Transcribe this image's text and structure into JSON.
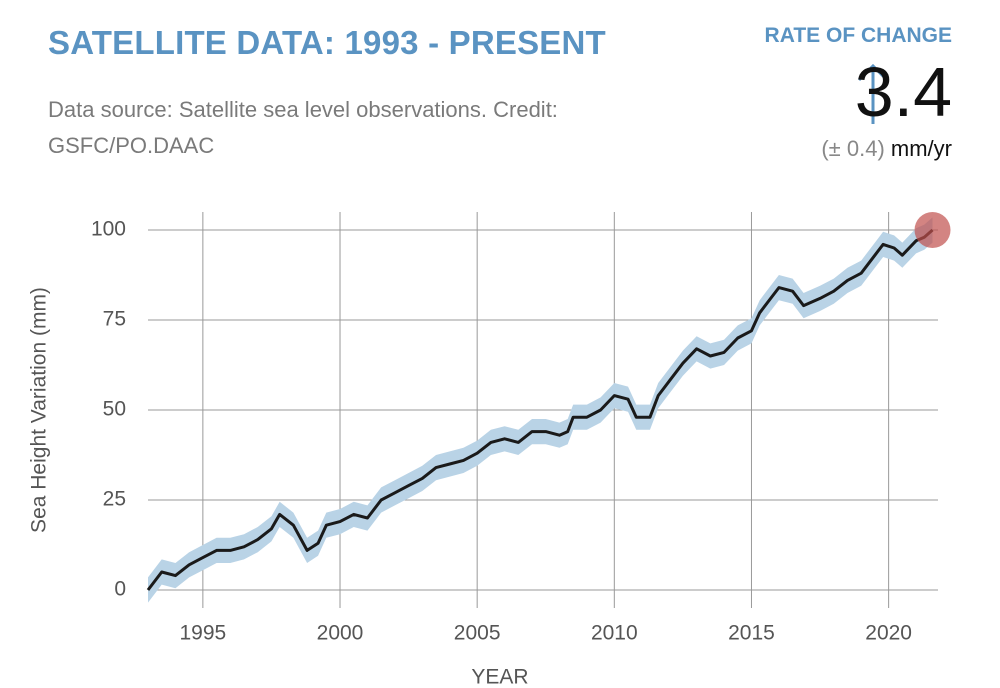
{
  "chart_data": {
    "type": "line",
    "title": "SATELLITE DATA: 1993 - PRESENT",
    "subtitle": "Data source: Satellite sea level observations. Credit: GSFC/PO.DAAC",
    "rate": {
      "label": "RATE OF CHANGE",
      "value": 3.4,
      "uncertainty": "(± 0.4)",
      "unit": "mm/yr"
    },
    "xlabel": "YEAR",
    "ylabel": "Sea Height Variation (mm)",
    "x": [
      1993.0,
      1993.5,
      1994.0,
      1994.5,
      1995.0,
      1995.5,
      1996.0,
      1996.5,
      1997.0,
      1997.5,
      1997.8,
      1998.3,
      1998.8,
      1999.2,
      1999.5,
      2000.0,
      2000.5,
      2001.0,
      2001.5,
      2002.0,
      2002.5,
      2003.0,
      2003.5,
      2004.0,
      2004.5,
      2005.0,
      2005.5,
      2006.0,
      2006.5,
      2007.0,
      2007.5,
      2008.0,
      2008.3,
      2008.5,
      2009.0,
      2009.5,
      2010.0,
      2010.5,
      2010.8,
      2011.3,
      2011.6,
      2012.0,
      2012.5,
      2013.0,
      2013.5,
      2014.0,
      2014.5,
      2015.0,
      2015.3,
      2015.7,
      2016.0,
      2016.5,
      2016.9,
      2017.5,
      2018.0,
      2018.5,
      2019.0,
      2019.5,
      2019.8,
      2020.2,
      2020.5,
      2021.0,
      2021.3,
      2021.6
    ],
    "series": [
      {
        "name": "Sea Height Variation",
        "color": "#1a1a1a",
        "band_color": "#b9d3e6",
        "error": 3.5,
        "values": [
          0,
          5,
          4,
          7,
          9,
          11,
          11,
          12,
          14,
          17,
          21,
          18,
          11,
          13,
          18,
          19,
          21,
          20,
          25,
          27,
          29,
          31,
          34,
          35,
          36,
          38,
          41,
          42,
          41,
          44,
          44,
          43,
          44,
          48,
          48,
          50,
          54,
          53,
          48,
          48,
          54,
          58,
          63,
          67,
          65,
          66,
          70,
          72,
          77,
          81,
          84,
          83,
          79,
          81,
          83,
          86,
          88,
          93,
          96,
          95,
          93,
          97,
          98,
          100
        ]
      }
    ],
    "highlight_color": "#c0504d",
    "xlim": [
      1993,
      2021.8
    ],
    "xticks": [
      1995,
      2000,
      2005,
      2010,
      2015,
      2020
    ],
    "ylim": [
      -5,
      105
    ],
    "yticks": [
      0,
      25,
      50,
      75,
      100
    ],
    "grid": true
  }
}
